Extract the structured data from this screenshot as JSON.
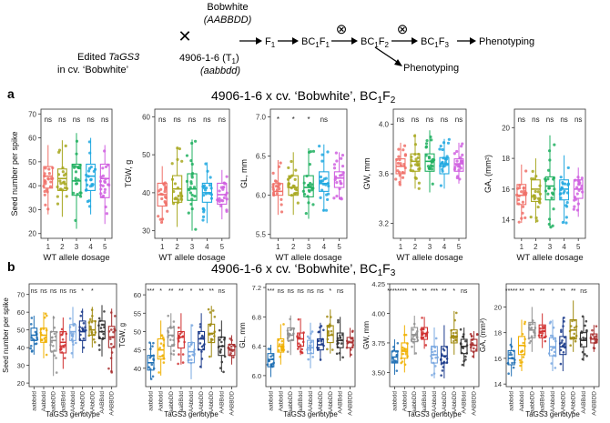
{
  "scheme": {
    "bobwhite_line1": "Bobwhite",
    "bobwhite_line2": "(AABBDD)",
    "cross_symbol": "✕",
    "edited_line1_prefix": "Edited ",
    "edited_line1_gene": "TaGS3",
    "edited_line2": "in cv. ‘Bobwhite’",
    "line_4906": "4906-1-6 (T",
    "line_4906_sub": "1",
    "line_4906_end": ")",
    "genotype_4906": "(aabbdd)",
    "f1": "F",
    "f1_sub": "1",
    "bc1f1": "BC",
    "bc1f1_sub1": "1",
    "bc1f1_mid": "F",
    "bc1f1_sub2": "1",
    "bc1f2_sub2": "2",
    "bc1f3_sub2": "3",
    "selfing_symbol": "⊗",
    "phenotyping": "Phenotyping"
  },
  "panel_a": {
    "letter": "a",
    "title": "4906-1-6 x cv. ‘Bobwhite’, BC",
    "title_sub1": "1",
    "title_mid": "F",
    "title_sub2": "2",
    "xlabel": "WT allele dosage"
  },
  "panel_b": {
    "letter": "b",
    "title": "4906-1-6 x cv. ‘Bobwhite’, BC",
    "title_sub1": "1",
    "title_mid": "F",
    "title_sub2": "3",
    "xlabel": "TaGS3 genotype"
  },
  "colors": {
    "a": [
      "#f07068",
      "#a8a820",
      "#20b060",
      "#20a8e0",
      "#d060e0"
    ],
    "b": [
      "#1f6fb4",
      "#f0b000",
      "#909090",
      "#d03030",
      "#7aa8e0",
      "#1a3a8a",
      "#a08a10",
      "#303030",
      "#a83030"
    ]
  },
  "chart_data": [
    {
      "type": "box",
      "panel": "a",
      "ylabel": "Seed number per spike",
      "categories": [
        "1",
        "2",
        "3",
        "4",
        "5"
      ],
      "ylim": [
        18,
        72
      ],
      "yticks": [
        20,
        30,
        40,
        50,
        60,
        70
      ],
      "boxes": [
        {
          "q1": 39,
          "median": 44,
          "q3": 48,
          "wl": 28,
          "wh": 57
        },
        {
          "q1": 38,
          "median": 43,
          "q3": 47,
          "wl": 27,
          "wh": 59
        },
        {
          "q1": 36,
          "median": 42,
          "q3": 49,
          "wl": 22,
          "wh": 62
        },
        {
          "q1": 38,
          "median": 44,
          "q3": 49,
          "wl": 28,
          "wh": 60
        },
        {
          "q1": 35,
          "median": 43,
          "q3": 49,
          "wl": 24,
          "wh": 57
        }
      ],
      "signif": [
        "ns",
        "ns",
        "ns",
        "ns",
        "ns"
      ]
    },
    {
      "type": "box",
      "panel": "a",
      "ylabel": "TGW, g",
      "categories": [
        "1",
        "2",
        "3",
        "4",
        "5"
      ],
      "ylim": [
        28,
        62
      ],
      "yticks": [
        30,
        40,
        50,
        60
      ],
      "boxes": [
        {
          "q1": 36.5,
          "median": 39.5,
          "q3": 42.5,
          "wl": 32,
          "wh": 47
        },
        {
          "q1": 37.5,
          "median": 41,
          "q3": 44.5,
          "wl": 31,
          "wh": 52
        },
        {
          "q1": 38,
          "median": 41,
          "q3": 45,
          "wl": 30,
          "wh": 54
        },
        {
          "q1": 37.5,
          "median": 40,
          "q3": 42.5,
          "wl": 32,
          "wh": 48
        },
        {
          "q1": 37,
          "median": 39.5,
          "q3": 42.5,
          "wl": 33,
          "wh": 46
        }
      ],
      "signif": [
        "ns",
        "ns",
        "ns",
        "ns",
        "ns"
      ]
    },
    {
      "type": "box",
      "panel": "a",
      "ylabel": "GL, mm",
      "categories": [
        "1",
        "2",
        "3",
        "4",
        "5"
      ],
      "ylim": [
        5.45,
        7.1
      ],
      "yticks": [
        5.5,
        6.0,
        6.5,
        7.0
      ],
      "boxes": [
        {
          "q1": 6.0,
          "median": 6.05,
          "q3": 6.15,
          "wl": 5.75,
          "wh": 6.45
        },
        {
          "q1": 6.0,
          "median": 6.1,
          "q3": 6.25,
          "wl": 5.75,
          "wh": 6.55
        },
        {
          "q1": 5.98,
          "median": 6.1,
          "q3": 6.25,
          "wl": 5.7,
          "wh": 6.6
        },
        {
          "q1": 6.05,
          "median": 6.15,
          "q3": 6.3,
          "wl": 5.8,
          "wh": 6.65
        },
        {
          "q1": 6.1,
          "median": 6.22,
          "q3": 6.3,
          "wl": 5.95,
          "wh": 6.55
        }
      ],
      "signif": [
        "*",
        "*",
        "*",
        "ns",
        ""
      ]
    },
    {
      "type": "box",
      "panel": "a",
      "ylabel": "GW, mm",
      "categories": [
        "1",
        "2",
        "3",
        "4",
        "5"
      ],
      "ylim": [
        3.08,
        4.12
      ],
      "yticks": [
        3.2,
        3.6,
        4.0
      ],
      "boxes": [
        {
          "q1": 3.6,
          "median": 3.66,
          "q3": 3.72,
          "wl": 3.5,
          "wh": 3.85
        },
        {
          "q1": 3.62,
          "median": 3.7,
          "q3": 3.76,
          "wl": 3.48,
          "wh": 3.92
        },
        {
          "q1": 3.62,
          "median": 3.7,
          "q3": 3.76,
          "wl": 3.45,
          "wh": 3.95
        },
        {
          "q1": 3.6,
          "median": 3.68,
          "q3": 3.73,
          "wl": 3.48,
          "wh": 3.88
        },
        {
          "q1": 3.62,
          "median": 3.68,
          "q3": 3.72,
          "wl": 3.52,
          "wh": 3.85
        }
      ],
      "signif": [
        "ns",
        "ns",
        "ns",
        "ns",
        "ns"
      ]
    },
    {
      "type": "box",
      "panel": "a",
      "ylabel": "GA, (mm²)",
      "categories": [
        "1",
        "2",
        "3",
        "4",
        "5"
      ],
      "ylim": [
        12.8,
        21.2
      ],
      "yticks": [
        14,
        16,
        18,
        20
      ],
      "boxes": [
        {
          "q1": 15.0,
          "median": 15.6,
          "q3": 16.3,
          "wl": 13.8,
          "wh": 17.6
        },
        {
          "q1": 15.2,
          "median": 16.0,
          "q3": 16.6,
          "wl": 13.8,
          "wh": 18.0
        },
        {
          "q1": 15.3,
          "median": 16.2,
          "q3": 16.8,
          "wl": 13.5,
          "wh": 19.5
        },
        {
          "q1": 15.3,
          "median": 16.0,
          "q3": 16.6,
          "wl": 13.8,
          "wh": 18.2
        },
        {
          "q1": 15.4,
          "median": 16.0,
          "q3": 16.6,
          "wl": 14.2,
          "wh": 17.4
        }
      ],
      "signif": [
        "ns",
        "ns",
        "ns",
        "ns",
        "ns"
      ]
    },
    {
      "type": "box",
      "panel": "b",
      "ylabel": "Seed number per spike",
      "categories": [
        "aabbdd",
        "Aabbdd",
        "aabbDD",
        "aaBBdd",
        "AAbbdd",
        "AAbbDD",
        "AAbbDD",
        "AABBdd",
        "AABBDD"
      ],
      "ylim": [
        18,
        76
      ],
      "yticks": [
        20,
        30,
        40,
        50,
        60,
        70
      ],
      "boxes": [
        {
          "q1": 44,
          "median": 47,
          "q3": 51,
          "wl": 36,
          "wh": 58
        },
        {
          "q1": 43,
          "median": 47,
          "q3": 51,
          "wl": 34,
          "wh": 60
        },
        {
          "q1": 38,
          "median": 44,
          "q3": 49,
          "wl": 24,
          "wh": 58
        },
        {
          "q1": 37,
          "median": 43,
          "q3": 49,
          "wl": 28,
          "wh": 57
        },
        {
          "q1": 44,
          "median": 49,
          "q3": 53,
          "wl": 34,
          "wh": 63
        },
        {
          "q1": 44,
          "median": 49,
          "q3": 55,
          "wl": 37,
          "wh": 62
        },
        {
          "q1": 47,
          "median": 50,
          "q3": 55,
          "wl": 40,
          "wh": 63
        },
        {
          "q1": 45,
          "median": 49,
          "q3": 55,
          "wl": 35,
          "wh": 64
        },
        {
          "q1": 40,
          "median": 46,
          "q3": 52,
          "wl": 26,
          "wh": 62
        }
      ],
      "signif": [
        "ns",
        "ns",
        "ns",
        "ns",
        "ns",
        "*",
        "*",
        "",
        ""
      ]
    },
    {
      "type": "box",
      "panel": "b",
      "ylabel": "TGW, g",
      "categories": [
        "aabbdd",
        "Aabbdd",
        "aabbDD",
        "aaBBdd",
        "AAbbdd",
        "AAbbDD",
        "AAbbDD",
        "AABBdd",
        "AABBDD"
      ],
      "ylim": [
        35,
        63
      ],
      "yticks": [
        40,
        45,
        50,
        55,
        60
      ],
      "boxes": [
        {
          "q1": 39.5,
          "median": 41.5,
          "q3": 43.5,
          "wl": 37,
          "wh": 47
        },
        {
          "q1": 42.5,
          "median": 45,
          "q3": 48,
          "wl": 38,
          "wh": 53
        },
        {
          "q1": 46,
          "median": 49,
          "q3": 51,
          "wl": 42,
          "wh": 55
        },
        {
          "q1": 45.5,
          "median": 48.5,
          "q3": 50,
          "wl": 41,
          "wh": 55
        },
        {
          "q1": 41.5,
          "median": 44.5,
          "q3": 47,
          "wl": 37,
          "wh": 52
        },
        {
          "q1": 45,
          "median": 48,
          "q3": 50,
          "wl": 40,
          "wh": 55
        },
        {
          "q1": 47,
          "median": 49.5,
          "q3": 52,
          "wl": 43,
          "wh": 57
        },
        {
          "q1": 43.5,
          "median": 46,
          "q3": 48.5,
          "wl": 39,
          "wh": 53
        },
        {
          "q1": 43.5,
          "median": 45,
          "q3": 46.5,
          "wl": 41,
          "wh": 49
        }
      ],
      "signif": [
        "***",
        "*",
        "**",
        "**",
        "*",
        "**",
        "**",
        "ns",
        ""
      ]
    },
    {
      "type": "box",
      "panel": "b",
      "ylabel": "GL, mm",
      "categories": [
        "aabbdd",
        "Aabbdd",
        "aabbDD",
        "aaBBdd",
        "AAbbdd",
        "AAbbDD",
        "AAbbDD",
        "AABBdd",
        "AABBDD"
      ],
      "ylim": [
        5.85,
        7.25
      ],
      "yticks": [
        6.0,
        6.4,
        6.8,
        7.2
      ],
      "boxes": [
        {
          "q1": 6.12,
          "median": 6.22,
          "q3": 6.3,
          "wl": 5.98,
          "wh": 6.42
        },
        {
          "q1": 6.32,
          "median": 6.4,
          "q3": 6.5,
          "wl": 6.15,
          "wh": 6.7
        },
        {
          "q1": 6.48,
          "median": 6.55,
          "q3": 6.65,
          "wl": 6.28,
          "wh": 6.82
        },
        {
          "q1": 6.4,
          "median": 6.5,
          "q3": 6.58,
          "wl": 6.28,
          "wh": 6.78
        },
        {
          "q1": 6.3,
          "median": 6.38,
          "q3": 6.48,
          "wl": 6.1,
          "wh": 6.72
        },
        {
          "q1": 6.35,
          "median": 6.42,
          "q3": 6.5,
          "wl": 6.2,
          "wh": 6.72
        },
        {
          "q1": 6.45,
          "median": 6.55,
          "q3": 6.68,
          "wl": 6.3,
          "wh": 6.9
        },
        {
          "q1": 6.38,
          "median": 6.48,
          "q3": 6.58,
          "wl": 6.2,
          "wh": 6.8
        },
        {
          "q1": 6.38,
          "median": 6.45,
          "q3": 6.52,
          "wl": 6.25,
          "wh": 6.65
        }
      ],
      "signif": [
        "***",
        "ns",
        "ns",
        "ns",
        "ns",
        "ns",
        "*",
        "ns",
        ""
      ]
    },
    {
      "type": "box",
      "panel": "b",
      "ylabel": "GW, mm",
      "categories": [
        "aabbdd",
        "Aabbdd",
        "aabbDD",
        "aaBBdd",
        "AAbbdd",
        "AAbbDD",
        "AAbbDD",
        "AABBdd",
        "AABBDD"
      ],
      "ylim": [
        3.38,
        4.25
      ],
      "yticks": [
        3.5,
        3.75,
        4.0,
        4.25
      ],
      "boxes": [
        {
          "q1": 3.58,
          "median": 3.63,
          "q3": 3.68,
          "wl": 3.48,
          "wh": 3.78
        },
        {
          "q1": 3.62,
          "median": 3.68,
          "q3": 3.75,
          "wl": 3.5,
          "wh": 3.9
        },
        {
          "q1": 3.76,
          "median": 3.82,
          "q3": 3.88,
          "wl": 3.65,
          "wh": 3.98
        },
        {
          "q1": 3.78,
          "median": 3.83,
          "q3": 3.88,
          "wl": 3.7,
          "wh": 3.97
        },
        {
          "q1": 3.58,
          "median": 3.65,
          "q3": 3.72,
          "wl": 3.45,
          "wh": 3.88
        },
        {
          "q1": 3.58,
          "median": 3.64,
          "q3": 3.72,
          "wl": 3.45,
          "wh": 3.9
        },
        {
          "q1": 3.75,
          "median": 3.8,
          "q3": 3.86,
          "wl": 3.65,
          "wh": 4.02
        },
        {
          "q1": 3.66,
          "median": 3.72,
          "q3": 3.78,
          "wl": 3.55,
          "wh": 3.88
        },
        {
          "q1": 3.68,
          "median": 3.73,
          "q3": 3.78,
          "wl": 3.62,
          "wh": 3.85
        }
      ],
      "signif": [
        "******",
        "**",
        "**",
        "**",
        "***",
        "**",
        "*",
        "ns",
        ""
      ]
    },
    {
      "type": "box",
      "panel": "b",
      "ylabel": "GA, (mm²)",
      "categories": [
        "aabbdd",
        "Aabbdd",
        "aabbDD",
        "aaBBdd",
        "AAbbdd",
        "AAbbDD",
        "AAbbDD",
        "AABBdd",
        "AABBDD"
      ],
      "ylim": [
        13.8,
        21.8
      ],
      "yticks": [
        14,
        16,
        18,
        20
      ],
      "boxes": [
        {
          "q1": 15.5,
          "median": 16.0,
          "q3": 16.6,
          "wl": 14.6,
          "wh": 17.6
        },
        {
          "q1": 16.3,
          "median": 17.0,
          "q3": 17.7,
          "wl": 15.0,
          "wh": 19.0
        },
        {
          "q1": 17.6,
          "median": 18.2,
          "q3": 18.8,
          "wl": 16.5,
          "wh": 20.0
        },
        {
          "q1": 17.6,
          "median": 18.1,
          "q3": 18.6,
          "wl": 16.8,
          "wh": 19.5
        },
        {
          "q1": 16.2,
          "median": 16.9,
          "q3": 17.6,
          "wl": 15.0,
          "wh": 19.0
        },
        {
          "q1": 16.3,
          "median": 16.9,
          "q3": 17.7,
          "wl": 15.0,
          "wh": 19.2
        },
        {
          "q1": 17.5,
          "median": 18.2,
          "q3": 19.0,
          "wl": 16.5,
          "wh": 20.5
        },
        {
          "q1": 16.9,
          "median": 17.4,
          "q3": 18.0,
          "wl": 15.8,
          "wh": 19.3
        },
        {
          "q1": 17.2,
          "median": 17.5,
          "q3": 17.9,
          "wl": 16.5,
          "wh": 18.6
        }
      ],
      "signif": [
        "*****",
        "**",
        "**",
        "**",
        "*",
        "**",
        "**",
        "ns",
        ""
      ]
    }
  ]
}
